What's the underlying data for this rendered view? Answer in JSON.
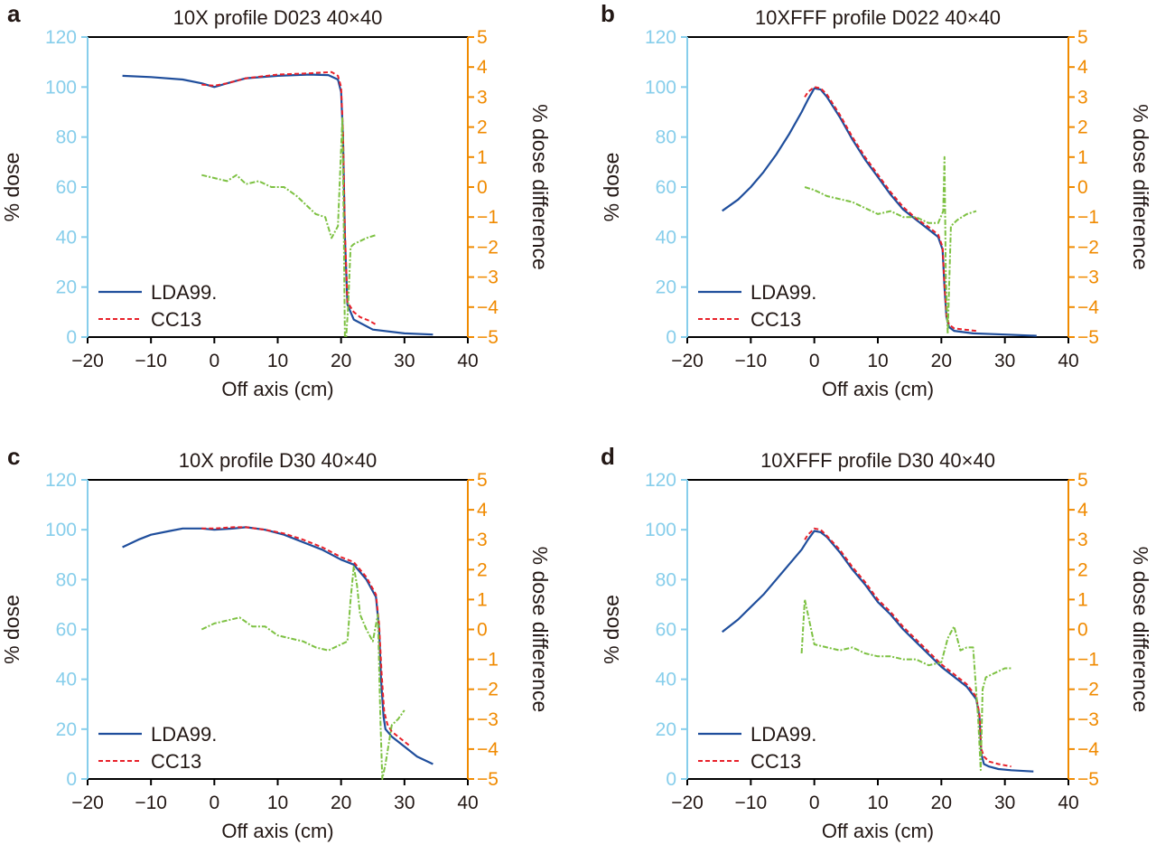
{
  "colors": {
    "left_axis": "#87CEEB",
    "right_axis": "#F08A00",
    "ldaa99": "#1F4E9C",
    "cc13": "#E8212A",
    "difference": "#7DC142",
    "frame": "#000000"
  },
  "chart_data": [
    {
      "panel_letter": "a",
      "title": "10X profile D023 40×40",
      "type": "line",
      "xlabel": "Off axis (cm)",
      "ylabel": "% dose",
      "y2label": "% dose difference",
      "xlim": [
        -20,
        40
      ],
      "ylim": [
        0,
        120
      ],
      "y2lim": [
        -5,
        5
      ],
      "xticks": [
        "−20",
        "−10",
        "0",
        "10",
        "20",
        "30",
        "40"
      ],
      "yticks": [
        "0",
        "20",
        "40",
        "60",
        "80",
        "100",
        "120"
      ],
      "y2ticks": [
        "−5",
        "−4",
        "−3",
        "−2",
        "−1",
        "0",
        "1",
        "2",
        "3",
        "4",
        "5"
      ],
      "legend": {
        "position": "bottom-left",
        "entries": [
          "LDA99.",
          "CC13"
        ]
      },
      "series": [
        {
          "name": "LDA99.",
          "axis": "left",
          "style": "solid",
          "x": [
            -14.5,
            -10,
            -5,
            -2,
            0,
            2,
            5,
            10,
            15,
            18,
            19.5,
            20,
            20.3,
            20.6,
            21,
            22,
            25,
            30,
            34.5
          ],
          "y": [
            104.5,
            104,
            103,
            101.5,
            100,
            101.5,
            103.5,
            104.5,
            105,
            104.8,
            103,
            98,
            80,
            40,
            13,
            7,
            3,
            1.5,
            1
          ]
        },
        {
          "name": "CC13",
          "axis": "left",
          "style": "dashed",
          "x": [
            -2,
            0,
            2,
            5,
            10,
            15,
            17,
            18.5,
            19.5,
            20,
            20.3,
            20.6,
            21,
            22,
            23,
            24.5,
            25.5
          ],
          "y": [
            101,
            100.5,
            101.5,
            103.5,
            105,
            105.5,
            105.8,
            106,
            104.5,
            100,
            82,
            42,
            14,
            10,
            8,
            6.5,
            5
          ]
        },
        {
          "name": "",
          "axis": "right",
          "style": "dashdot",
          "x": [
            -2,
            0,
            2,
            3.5,
            5,
            7,
            9,
            11,
            13,
            14.5,
            16,
            17.5,
            18.5,
            19.5,
            20.2,
            20.4,
            20.6,
            20.8,
            21.1,
            21.5,
            22,
            23,
            24,
            25.5
          ],
          "y": [
            0.4,
            0.3,
            0.2,
            0.4,
            0.1,
            0.2,
            0.0,
            0.0,
            -0.3,
            -0.6,
            -0.9,
            -1.0,
            -1.7,
            -1.3,
            2.3,
            -1.0,
            -5.0,
            -5.0,
            -4.0,
            -2.0,
            -1.9,
            -1.8,
            -1.7,
            -1.6
          ]
        }
      ]
    },
    {
      "panel_letter": "b",
      "title": "10XFFF profile D022 40×40",
      "type": "line",
      "xlabel": "Off axis (cm)",
      "ylabel": "% dose",
      "y2label": "% dose difference",
      "xlim": [
        -20,
        40
      ],
      "ylim": [
        0,
        120
      ],
      "y2lim": [
        -5,
        5
      ],
      "xticks": [
        "−20",
        "−10",
        "0",
        "10",
        "20",
        "30",
        "40"
      ],
      "yticks": [
        "0",
        "20",
        "40",
        "60",
        "80",
        "100",
        "120"
      ],
      "y2ticks": [
        "−5",
        "−4",
        "−3",
        "−2",
        "−1",
        "0",
        "1",
        "2",
        "3",
        "4",
        "5"
      ],
      "legend": {
        "position": "bottom-left",
        "entries": [
          "LDA99.",
          "CC13"
        ]
      },
      "series": [
        {
          "name": "LDA99.",
          "axis": "left",
          "style": "solid",
          "x": [
            -14.5,
            -12,
            -10,
            -8,
            -6,
            -4,
            -2,
            -1,
            0,
            1,
            2,
            4,
            6,
            8,
            10,
            12,
            14,
            16,
            18,
            19.5,
            20.2,
            20.5,
            20.8,
            21.2,
            22,
            25,
            30,
            35
          ],
          "y": [
            50.5,
            55,
            60,
            66,
            73,
            81,
            90,
            95,
            99.5,
            99,
            96,
            88,
            79,
            71,
            64,
            57,
            51,
            47,
            43,
            40,
            35,
            20,
            8,
            4,
            2.5,
            1.5,
            1,
            0.5
          ]
        },
        {
          "name": "CC13",
          "axis": "left",
          "style": "dashed",
          "x": [
            -1.5,
            -1,
            0,
            1,
            2,
            4,
            6,
            8,
            10,
            12,
            14,
            16,
            18,
            19.5,
            20.2,
            20.5,
            20.8,
            21.2,
            22,
            23.5,
            25.5
          ],
          "y": [
            96,
            98,
            100,
            99.5,
            97,
            89,
            80,
            72,
            65,
            58,
            52,
            47.5,
            44,
            41,
            36,
            21,
            9,
            5,
            3.5,
            3,
            2.5
          ]
        },
        {
          "name": "",
          "axis": "right",
          "style": "dashdot",
          "x": [
            -1.5,
            0,
            2,
            4,
            6,
            8,
            10,
            12,
            14,
            16,
            18,
            19.5,
            20.3,
            20.5,
            20.7,
            21,
            21.5,
            22.5,
            24,
            25.5
          ],
          "y": [
            0.0,
            -0.1,
            -0.3,
            -0.4,
            -0.5,
            -0.7,
            -0.9,
            -0.8,
            -1.0,
            -1.0,
            -1.2,
            -1.2,
            -0.8,
            1.0,
            -3.0,
            -4.9,
            -1.3,
            -1.1,
            -0.9,
            -0.8
          ]
        }
      ]
    },
    {
      "panel_letter": "c",
      "title": "10X profile D30 40×40",
      "type": "line",
      "xlabel": "Off axis (cm)",
      "ylabel": "% dose",
      "y2label": "% dose difference",
      "xlim": [
        -20,
        40
      ],
      "ylim": [
        0,
        120
      ],
      "y2lim": [
        -5,
        5
      ],
      "xticks": [
        "−20",
        "−10",
        "0",
        "10",
        "20",
        "30",
        "40"
      ],
      "yticks": [
        "0",
        "20",
        "40",
        "60",
        "80",
        "100",
        "120"
      ],
      "y2ticks": [
        "−5",
        "−4",
        "−3",
        "−2",
        "−1",
        "0",
        "1",
        "2",
        "3",
        "4",
        "5"
      ],
      "legend": {
        "position": "bottom-left",
        "entries": [
          "LDA99.",
          "CC13"
        ]
      },
      "series": [
        {
          "name": "LDA99.",
          "axis": "left",
          "style": "solid",
          "x": [
            -14.5,
            -12,
            -10,
            -7,
            -5,
            -2,
            0,
            3,
            5,
            8,
            11,
            14,
            17,
            20,
            22,
            24,
            25.5,
            26,
            26.3,
            26.7,
            27,
            28,
            30,
            32,
            34.5
          ],
          "y": [
            93,
            96,
            98,
            99.5,
            100.5,
            100.5,
            100,
            100.5,
            101,
            100,
            98,
            95,
            92,
            88,
            86,
            80,
            73,
            60,
            40,
            25,
            20,
            17,
            13,
            9,
            6
          ]
        },
        {
          "name": "CC13",
          "axis": "left",
          "style": "dashed",
          "x": [
            -2,
            0,
            3,
            5,
            8,
            11,
            14,
            17,
            20,
            22,
            24,
            25.5,
            26,
            26.4,
            26.8,
            27.3,
            28,
            29.5,
            31
          ],
          "y": [
            100.5,
            100.5,
            101,
            101,
            100,
            98.5,
            96,
            93,
            89,
            87,
            81,
            74,
            62,
            42,
            27,
            22,
            19,
            16,
            13
          ]
        },
        {
          "name": "",
          "axis": "right",
          "style": "dashdot",
          "x": [
            -2,
            0,
            2,
            4,
            6,
            8,
            10,
            12,
            14,
            16,
            18,
            20,
            21,
            21.5,
            22,
            22.5,
            23,
            24,
            25,
            25.8,
            26.2,
            26.5,
            27,
            28,
            29,
            30
          ],
          "y": [
            0.0,
            0.2,
            0.3,
            0.4,
            0.1,
            0.1,
            -0.2,
            -0.3,
            -0.4,
            -0.6,
            -0.7,
            -0.5,
            -0.4,
            1.0,
            2.1,
            1.5,
            0.5,
            0.0,
            -0.4,
            0.5,
            -3.0,
            -5.0,
            -4.5,
            -3.2,
            -3.0,
            -2.7
          ]
        }
      ]
    },
    {
      "panel_letter": "d",
      "title": "10XFFF profile D30 40×40",
      "type": "line",
      "xlabel": "Off axis (cm)",
      "ylabel": "% dose",
      "y2label": "% dose difference",
      "xlim": [
        -20,
        40
      ],
      "ylim": [
        0,
        120
      ],
      "y2lim": [
        -5,
        5
      ],
      "xticks": [
        "−20",
        "−10",
        "0",
        "10",
        "20",
        "30",
        "40"
      ],
      "yticks": [
        "0",
        "20",
        "40",
        "60",
        "80",
        "100",
        "120"
      ],
      "y2ticks": [
        "−5",
        "−4",
        "−3",
        "−2",
        "−1",
        "0",
        "1",
        "2",
        "3",
        "4",
        "5"
      ],
      "legend": {
        "position": "bottom-left",
        "entries": [
          "LDA99.",
          "CC13"
        ]
      },
      "series": [
        {
          "name": "LDA99.",
          "axis": "left",
          "style": "solid",
          "x": [
            -14.5,
            -12,
            -10,
            -8,
            -6,
            -4,
            -2,
            -1,
            0,
            1,
            2,
            4,
            6,
            8,
            10,
            12,
            14,
            16,
            18,
            20,
            22,
            24,
            25.5,
            26,
            26.3,
            26.7,
            27.5,
            29,
            31,
            34.5
          ],
          "y": [
            59,
            64,
            69,
            74,
            80,
            86,
            92,
            96,
            99.5,
            99,
            97,
            91,
            84,
            78,
            71,
            66,
            60,
            55,
            50,
            45,
            41,
            37,
            32,
            25,
            10,
            6,
            5,
            4,
            3.5,
            3
          ]
        },
        {
          "name": "CC13",
          "axis": "left",
          "style": "dashed",
          "x": [
            -1.5,
            -1,
            0,
            1,
            2,
            4,
            6,
            8,
            10,
            12,
            14,
            16,
            18,
            20,
            22,
            24,
            25.5,
            26,
            26.3,
            26.7,
            27.5,
            29,
            31
          ],
          "y": [
            96,
            98,
            100.5,
            100,
            97.5,
            92,
            85,
            79,
            72,
            67,
            61,
            56,
            51,
            46,
            42,
            38,
            33,
            26,
            12,
            9,
            7,
            6,
            5
          ]
        },
        {
          "name": "",
          "axis": "right",
          "style": "dashdot",
          "x": [
            -2,
            -1.5,
            0,
            2,
            4,
            6,
            8,
            10,
            12,
            14,
            16,
            18,
            20,
            21,
            22,
            23,
            24,
            25,
            25.8,
            26.2,
            26.5,
            27,
            28,
            29,
            30,
            31
          ],
          "y": [
            -0.8,
            1.0,
            -0.5,
            -0.6,
            -0.7,
            -0.6,
            -0.8,
            -0.9,
            -0.9,
            -1.0,
            -1.0,
            -1.2,
            -1.1,
            -0.3,
            0.1,
            -0.7,
            -0.6,
            -0.6,
            -3.0,
            -4.7,
            -2.0,
            -1.6,
            -1.5,
            -1.4,
            -1.3,
            -1.3
          ]
        }
      ]
    }
  ]
}
